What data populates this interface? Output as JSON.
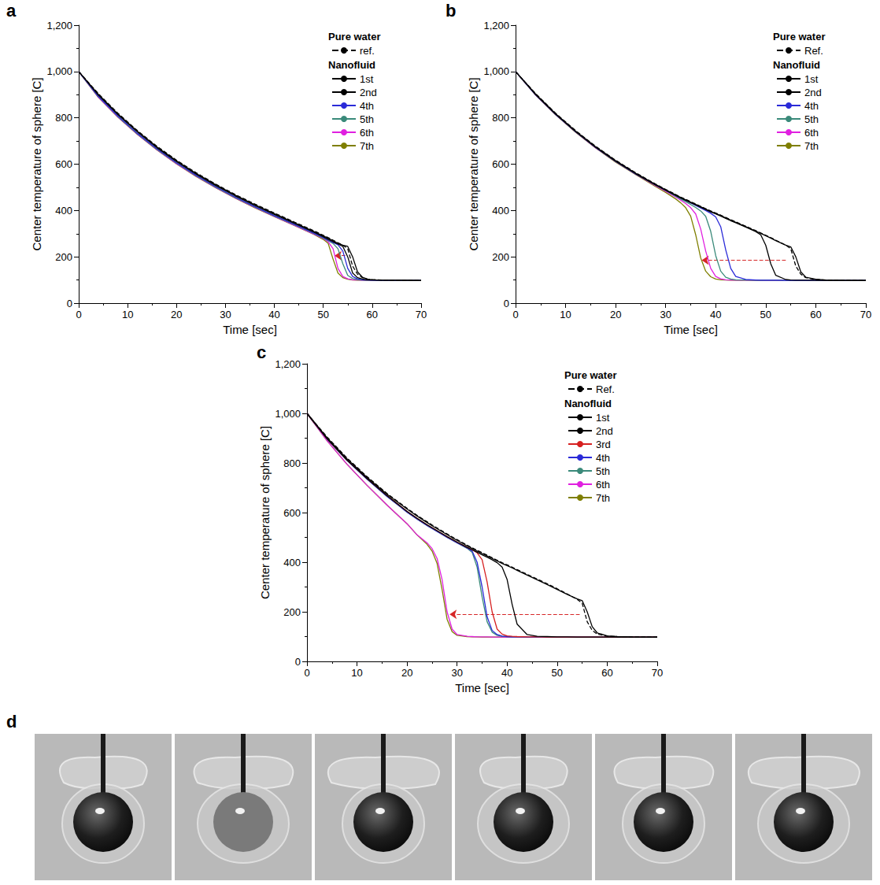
{
  "chart_data": [
    {
      "type": "line",
      "label": "a",
      "x_label": "Time [sec]",
      "y_label": "Center temperature of sphere [C]",
      "xlim": [
        0,
        70
      ],
      "xticks": [
        0,
        10,
        20,
        30,
        40,
        50,
        60,
        70
      ],
      "ylim": [
        0,
        1200
      ],
      "yticks": [
        0,
        200,
        400,
        600,
        800,
        1000,
        1200
      ],
      "grid": false,
      "legend": "upper right",
      "arrow": {
        "from": [
          54.5,
          205
        ],
        "to": [
          52.3,
          205
        ]
      },
      "x": [
        0,
        4,
        8,
        12,
        16,
        20,
        24,
        28,
        32,
        36,
        40,
        44,
        48,
        50,
        51,
        52,
        53,
        54,
        55,
        56,
        57,
        58,
        59,
        60,
        62,
        65,
        70
      ],
      "series": [
        {
          "name": "ref.",
          "group": "Pure water",
          "color": "#000000",
          "line_style": "dashed",
          "values": [
            1000,
            905,
            820,
            745,
            677,
            617,
            563,
            514,
            469,
            428,
            389,
            351,
            313,
            293,
            283,
            272,
            261,
            250,
            235,
            160,
            125,
            110,
            104,
            102,
            100,
            99,
            98
          ]
        },
        {
          "name": "1st",
          "group": "Nanofluid",
          "color": "#000000",
          "line_style": "solid",
          "values": [
            1000,
            902,
            817,
            742,
            674,
            614,
            560,
            511,
            466,
            425,
            386,
            348,
            310,
            290,
            280,
            269,
            258,
            250,
            245,
            200,
            135,
            112,
            104,
            101,
            100,
            99,
            98
          ]
        },
        {
          "name": "2nd",
          "group": "Nanofluid",
          "color": "#000000",
          "line_style": "solid",
          "values": [
            1000,
            899,
            814,
            739,
            671,
            611,
            557,
            508,
            463,
            422,
            383,
            345,
            307,
            287,
            276,
            265,
            255,
            245,
            200,
            130,
            110,
            104,
            101,
            100,
            99,
            99,
            98
          ]
        },
        {
          "name": "4th",
          "group": "Nanofluid",
          "color": "#2a2ad8",
          "line_style": "solid",
          "values": [
            1000,
            893,
            808,
            733,
            666,
            606,
            552,
            503,
            458,
            417,
            378,
            341,
            303,
            283,
            272,
            262,
            252,
            225,
            150,
            115,
            105,
            101,
            100,
            99,
            99,
            98,
            98
          ]
        },
        {
          "name": "5th",
          "group": "Nanofluid",
          "color": "#3a8a7a",
          "line_style": "solid",
          "values": [
            1000,
            892,
            806,
            731,
            664,
            604,
            550,
            501,
            456,
            415,
            376,
            339,
            301,
            281,
            270,
            258,
            235,
            170,
            120,
            106,
            102,
            100,
            99,
            99,
            98,
            98,
            98
          ]
        },
        {
          "name": "6th",
          "group": "Nanofluid",
          "color": "#e020e0",
          "line_style": "solid",
          "values": [
            1000,
            890,
            804,
            729,
            662,
            602,
            548,
            499,
            454,
            413,
            374,
            337,
            299,
            279,
            265,
            235,
            150,
            115,
            105,
            101,
            100,
            99,
            99,
            98,
            98,
            98,
            98
          ]
        },
        {
          "name": "7th",
          "group": "Nanofluid",
          "color": "#7f7f00",
          "line_style": "solid",
          "values": [
            1000,
            889,
            803,
            728,
            661,
            601,
            547,
            498,
            453,
            412,
            373,
            336,
            298,
            275,
            258,
            190,
            130,
            110,
            103,
            100,
            99,
            99,
            98,
            98,
            98,
            98,
            98
          ]
        }
      ]
    },
    {
      "type": "line",
      "label": "b",
      "x_label": "Time [sec]",
      "y_label": "Center temperature of sphere [C]",
      "xlim": [
        0,
        70
      ],
      "xticks": [
        0,
        10,
        20,
        30,
        40,
        50,
        60,
        70
      ],
      "ylim": [
        0,
        1200
      ],
      "yticks": [
        0,
        200,
        400,
        600,
        800,
        1000,
        1200
      ],
      "grid": false,
      "legend": "upper right",
      "arrow": {
        "from": [
          54,
          185
        ],
        "to": [
          37.2,
          185
        ]
      },
      "x": [
        0,
        4,
        8,
        12,
        16,
        20,
        24,
        28,
        30,
        32,
        33,
        34,
        35,
        36,
        37,
        38,
        39,
        40,
        41,
        42,
        43,
        44,
        46,
        48,
        49,
        50,
        51,
        52,
        54,
        55,
        56,
        57,
        58,
        60,
        62,
        65,
        70
      ],
      "series": [
        {
          "name": "Ref.",
          "group": "Pure water",
          "color": "#000000",
          "line_style": "dashed",
          "values": [
            1000,
            905,
            820,
            745,
            677,
            617,
            563,
            514,
            491,
            469,
            458,
            448,
            438,
            428,
            418,
            408,
            398,
            389,
            380,
            370,
            360,
            351,
            332,
            313,
            303,
            293,
            283,
            272,
            250,
            235,
            160,
            125,
            110,
            102,
            100,
            99,
            98
          ]
        },
        {
          "name": "1st",
          "group": "Nanofluid",
          "color": "#000000",
          "line_style": "solid",
          "values": [
            1000,
            903,
            818,
            743,
            675,
            615,
            561,
            512,
            489,
            467,
            456,
            446,
            436,
            426,
            416,
            406,
            396,
            387,
            378,
            368,
            358,
            349,
            330,
            311,
            301,
            291,
            281,
            270,
            250,
            243,
            200,
            135,
            112,
            103,
            100,
            99,
            98
          ]
        },
        {
          "name": "2nd",
          "group": "Nanofluid",
          "color": "#000000",
          "line_style": "solid",
          "values": [
            1000,
            901,
            816,
            741,
            673,
            613,
            559,
            510,
            487,
            465,
            454,
            444,
            434,
            424,
            414,
            404,
            394,
            385,
            376,
            366,
            356,
            347,
            328,
            309,
            295,
            250,
            170,
            120,
            102,
            100,
            99,
            99,
            99,
            98,
            98,
            98,
            98
          ]
        },
        {
          "name": "4th",
          "group": "Nanofluid",
          "color": "#2a2ad8",
          "line_style": "solid",
          "values": [
            1000,
            900,
            815,
            740,
            672,
            612,
            558,
            510,
            488,
            465,
            454,
            444,
            433,
            422,
            411,
            400,
            388,
            372,
            330,
            230,
            150,
            115,
            102,
            100,
            99,
            99,
            99,
            99,
            98,
            98,
            98,
            98,
            98,
            98,
            98,
            98,
            98
          ]
        },
        {
          "name": "5th",
          "group": "Nanofluid",
          "color": "#3a8a7a",
          "line_style": "solid",
          "values": [
            1000,
            900,
            815,
            740,
            672,
            612,
            558,
            509,
            486,
            462,
            450,
            438,
            426,
            413,
            398,
            375,
            310,
            205,
            138,
            112,
            104,
            101,
            100,
            99,
            99,
            99,
            99,
            99,
            98,
            98,
            98,
            98,
            98,
            98,
            98,
            98,
            98
          ]
        },
        {
          "name": "6th",
          "group": "Nanofluid",
          "color": "#e020e0",
          "line_style": "solid",
          "values": [
            1000,
            899,
            814,
            739,
            671,
            611,
            557,
            507,
            483,
            458,
            445,
            430,
            412,
            385,
            320,
            225,
            150,
            115,
            105,
            101,
            100,
            99,
            99,
            99,
            99,
            98,
            98,
            98,
            98,
            98,
            98,
            98,
            98,
            98,
            98,
            98,
            98
          ]
        },
        {
          "name": "7th",
          "group": "Nanofluid",
          "color": "#7f7f00",
          "line_style": "solid",
          "values": [
            1000,
            899,
            813,
            738,
            670,
            609,
            555,
            503,
            478,
            450,
            433,
            412,
            375,
            295,
            195,
            138,
            114,
            104,
            101,
            100,
            99,
            99,
            99,
            98,
            98,
            98,
            98,
            98,
            98,
            98,
            98,
            98,
            98,
            98,
            98,
            98,
            98
          ]
        }
      ]
    },
    {
      "type": "line",
      "label": "c",
      "x_label": "Time [sec]",
      "y_label": "Center temperature of sphere [C]",
      "xlim": [
        0,
        70
      ],
      "xticks": [
        0,
        10,
        20,
        30,
        40,
        50,
        60,
        70
      ],
      "ylim": [
        0,
        1200
      ],
      "yticks": [
        0,
        200,
        400,
        600,
        800,
        1000,
        1200
      ],
      "grid": false,
      "legend": "upper right",
      "arrow": {
        "from": [
          54.5,
          190
        ],
        "to": [
          28.5,
          190
        ]
      },
      "x": [
        0,
        4,
        8,
        12,
        16,
        20,
        22,
        24,
        25,
        26,
        27,
        28,
        29,
        30,
        32,
        33,
        34,
        35,
        36,
        37,
        38,
        39,
        40,
        41,
        42,
        44,
        46,
        48,
        50,
        52,
        54,
        55,
        56,
        57,
        58,
        60,
        62,
        65,
        70
      ],
      "series": [
        {
          "name": "Ref.",
          "group": "Pure water",
          "color": "#000000",
          "line_style": "dashed",
          "values": [
            1000,
            905,
            820,
            745,
            677,
            617,
            589,
            563,
            550,
            538,
            526,
            514,
            502,
            491,
            469,
            458,
            448,
            438,
            428,
            418,
            408,
            398,
            389,
            380,
            370,
            351,
            332,
            313,
            293,
            272,
            250,
            235,
            160,
            125,
            110,
            102,
            100,
            99,
            98
          ]
        },
        {
          "name": "1st",
          "group": "Nanofluid",
          "color": "#000000",
          "line_style": "solid",
          "values": [
            1000,
            902,
            817,
            742,
            674,
            614,
            586,
            560,
            547,
            535,
            523,
            511,
            499,
            488,
            466,
            455,
            445,
            435,
            425,
            415,
            405,
            395,
            386,
            377,
            367,
            348,
            329,
            310,
            290,
            270,
            252,
            245,
            200,
            140,
            115,
            103,
            100,
            99,
            98
          ]
        },
        {
          "name": "2nd",
          "group": "Nanofluid",
          "color": "#000000",
          "line_style": "solid",
          "values": [
            1000,
            898,
            812,
            737,
            668,
            605,
            577,
            551,
            539,
            527,
            515,
            503,
            492,
            481,
            460,
            450,
            440,
            430,
            420,
            410,
            398,
            380,
            330,
            230,
            150,
            108,
            101,
            100,
            99,
            99,
            98,
            98,
            98,
            98,
            98,
            98,
            98,
            98,
            98
          ]
        },
        {
          "name": "3rd",
          "group": "Nanofluid",
          "color": "#d62020",
          "line_style": "solid",
          "values": [
            1000,
            898,
            812,
            737,
            668,
            605,
            577,
            551,
            539,
            527,
            515,
            503,
            492,
            481,
            460,
            450,
            438,
            410,
            320,
            200,
            130,
            110,
            103,
            101,
            100,
            99,
            99,
            98,
            98,
            98,
            98,
            98,
            98,
            98,
            98,
            98,
            98,
            98,
            98
          ]
        },
        {
          "name": "4th",
          "group": "Nanofluid",
          "color": "#2a2ad8",
          "line_style": "solid",
          "values": [
            1000,
            897,
            810,
            735,
            665,
            602,
            574,
            548,
            536,
            524,
            512,
            500,
            489,
            478,
            457,
            445,
            400,
            300,
            180,
            125,
            108,
            102,
            100,
            99,
            99,
            98,
            98,
            98,
            98,
            98,
            98,
            98,
            98,
            98,
            98,
            98,
            98,
            98,
            98
          ]
        },
        {
          "name": "5th",
          "group": "Nanofluid",
          "color": "#3a8a7a",
          "line_style": "solid",
          "values": [
            1000,
            897,
            810,
            735,
            665,
            602,
            574,
            548,
            536,
            524,
            512,
            500,
            489,
            478,
            456,
            440,
            380,
            260,
            160,
            118,
            105,
            101,
            100,
            99,
            99,
            98,
            98,
            98,
            98,
            98,
            98,
            98,
            98,
            98,
            98,
            98,
            98,
            98,
            98
          ]
        },
        {
          "name": "6th",
          "group": "Nanofluid",
          "color": "#e020e0",
          "line_style": "solid",
          "values": [
            1000,
            890,
            795,
            710,
            630,
            555,
            510,
            478,
            455,
            415,
            330,
            200,
            130,
            108,
            101,
            100,
            99,
            99,
            99,
            98,
            98,
            98,
            98,
            98,
            98,
            98,
            98,
            98,
            98,
            98,
            98,
            98,
            98,
            98,
            98,
            98,
            98,
            98,
            98
          ]
        },
        {
          "name": "7th",
          "group": "Nanofluid",
          "color": "#7f7f00",
          "line_style": "solid",
          "values": [
            1000,
            890,
            795,
            710,
            630,
            555,
            510,
            472,
            445,
            395,
            290,
            170,
            120,
            105,
            100,
            99,
            99,
            98,
            98,
            98,
            98,
            98,
            98,
            98,
            98,
            98,
            98,
            98,
            98,
            98,
            98,
            98,
            98,
            98,
            98,
            98,
            98,
            98,
            98
          ]
        }
      ]
    }
  ],
  "photo_strip": {
    "label": "d"
  }
}
